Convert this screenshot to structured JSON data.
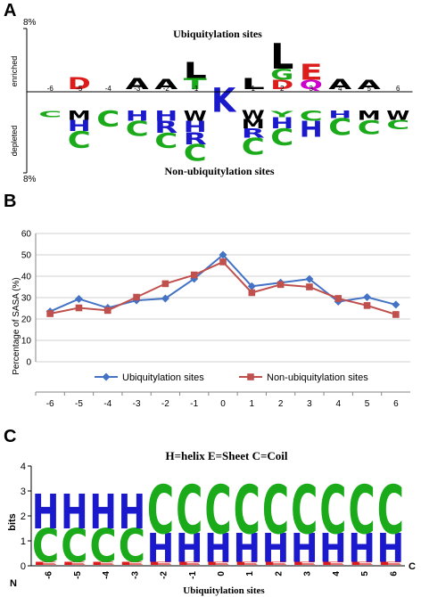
{
  "chart_data": [
    {
      "panel": "A",
      "type": "sequence-logo",
      "title_top": "Ubiquitylation sites",
      "title_bottom": "Non-ubiquitylation sites",
      "ylabel_top": "enriched",
      "ylabel_bottom": "depleted",
      "ytick_top": "8%",
      "ytick_bottom": "8%",
      "ymax_percent": 8,
      "positions": [
        "-6",
        "-5",
        "-4",
        "-3",
        "-2",
        "-1",
        "0",
        "1",
        "2",
        "3",
        "4",
        "5",
        "6"
      ],
      "colors": {
        "acidic": "#dd1c1c",
        "hydrophobic": "#000000",
        "polar": "#1aaa1a",
        "basic": "#1a1acc",
        "amide": "#cc00cc"
      },
      "enriched": [
        [],
        [
          {
            "letter": "D",
            "height": 1.3,
            "group": "acidic"
          }
        ],
        [],
        [
          {
            "letter": "A",
            "height": 1.2,
            "group": "hydrophobic"
          }
        ],
        [
          {
            "letter": "A",
            "height": 1.1,
            "group": "hydrophobic"
          }
        ],
        [
          {
            "letter": "T",
            "height": 1.2,
            "group": "polar"
          },
          {
            "letter": "L",
            "height": 1.7,
            "group": "hydrophobic"
          }
        ],
        [],
        [
          {
            "letter": "L",
            "height": 1.2,
            "group": "hydrophobic"
          }
        ],
        [
          {
            "letter": "D",
            "height": 1.0,
            "group": "acidic"
          },
          {
            "letter": "G",
            "height": 1.2,
            "group": "polar"
          },
          {
            "letter": "L",
            "height": 2.7,
            "group": "hydrophobic"
          }
        ],
        [
          {
            "letter": "Q",
            "height": 1.0,
            "group": "amide"
          },
          {
            "letter": "E",
            "height": 1.7,
            "group": "acidic"
          }
        ],
        [
          {
            "letter": "A",
            "height": 1.1,
            "group": "hydrophobic"
          }
        ],
        [
          {
            "letter": "A",
            "height": 1.0,
            "group": "hydrophobic"
          }
        ],
        []
      ],
      "depleted": [
        [
          {
            "letter": "C",
            "height": 0.7,
            "group": "polar"
          }
        ],
        [
          {
            "letter": "M",
            "height": 1.0,
            "group": "hydrophobic"
          },
          {
            "letter": "H",
            "height": 1.2,
            "group": "basic"
          },
          {
            "letter": "C",
            "height": 1.8,
            "group": "polar"
          }
        ],
        [
          {
            "letter": "C",
            "height": 1.7,
            "group": "polar"
          }
        ],
        [
          {
            "letter": "H",
            "height": 1.1,
            "group": "basic"
          },
          {
            "letter": "C",
            "height": 1.6,
            "group": "polar"
          }
        ],
        [
          {
            "letter": "H",
            "height": 1.1,
            "group": "basic"
          },
          {
            "letter": "R",
            "height": 1.3,
            "group": "basic"
          },
          {
            "letter": "C",
            "height": 1.6,
            "group": "polar"
          }
        ],
        [
          {
            "letter": "W",
            "height": 1.1,
            "group": "hydrophobic"
          },
          {
            "letter": "H",
            "height": 1.2,
            "group": "basic"
          },
          {
            "letter": "R",
            "height": 1.3,
            "group": "basic"
          },
          {
            "letter": "C",
            "height": 1.8,
            "group": "polar"
          }
        ],
        [],
        [
          {
            "letter": "W",
            "height": 0.9,
            "group": "hydrophobic"
          },
          {
            "letter": "M",
            "height": 1.0,
            "group": "hydrophobic"
          },
          {
            "letter": "R",
            "height": 1.0,
            "group": "basic"
          },
          {
            "letter": "C",
            "height": 1.8,
            "group": "polar"
          }
        ],
        [
          {
            "letter": "Y",
            "height": 0.7,
            "group": "polar"
          },
          {
            "letter": "H",
            "height": 1.2,
            "group": "basic"
          },
          {
            "letter": "C",
            "height": 1.8,
            "group": "polar"
          }
        ],
        [
          {
            "letter": "C",
            "height": 1.1,
            "group": "polar"
          },
          {
            "letter": "H",
            "height": 1.7,
            "group": "basic"
          }
        ],
        [
          {
            "letter": "H",
            "height": 0.8,
            "group": "basic"
          },
          {
            "letter": "C",
            "height": 1.8,
            "group": "polar"
          }
        ],
        [
          {
            "letter": "M",
            "height": 1.0,
            "group": "hydrophobic"
          },
          {
            "letter": "C",
            "height": 1.5,
            "group": "polar"
          }
        ],
        [
          {
            "letter": "W",
            "height": 1.0,
            "group": "hydrophobic"
          },
          {
            "letter": "C",
            "height": 1.0,
            "group": "polar"
          }
        ]
      ],
      "center": {
        "letter": "K",
        "height": 2.6,
        "group": "basic"
      }
    },
    {
      "panel": "B",
      "type": "line",
      "title": "",
      "xlabel": "",
      "ylabel": "Percentage of SASA (%)",
      "ylim": [
        0,
        60
      ],
      "yticks": [
        0,
        10,
        20,
        30,
        40,
        50,
        60
      ],
      "grid": true,
      "legend": "bottom",
      "x": [
        -6,
        -5,
        -4,
        -3,
        -2,
        -1,
        0,
        1,
        2,
        3,
        4,
        5,
        6
      ],
      "series": [
        {
          "name": "Ubiquitylation sites",
          "color": "#4472c4",
          "marker": "diamond",
          "values": [
            23.5,
            29.4,
            25.2,
            28.7,
            29.6,
            38.8,
            50.0,
            35.3,
            37.0,
            38.7,
            28.1,
            30.2,
            26.7
          ]
        },
        {
          "name": "Non-ubiquitylation sites",
          "color": "#c0504d",
          "marker": "square",
          "values": [
            22.5,
            25.2,
            24.0,
            30.2,
            36.5,
            40.6,
            46.7,
            32.3,
            36.1,
            35.0,
            29.6,
            26.3,
            22.1
          ]
        }
      ]
    },
    {
      "panel": "C",
      "type": "sequence-logo",
      "title": "H=helix E=Sheet C=Coil",
      "xlabel": "Ubiquitylation sites",
      "ylabel": "bits",
      "ylim": [
        0,
        4
      ],
      "yticks": [
        0,
        1,
        2,
        3,
        4
      ],
      "n_label": "N",
      "c_label": "C",
      "positions": [
        "-6",
        "-5",
        "-4",
        "-3",
        "-2",
        "-1",
        "0",
        "1",
        "2",
        "3",
        "4",
        "5",
        "6"
      ],
      "colors": {
        "H": "#1a1acc",
        "C": "#1aaa1a",
        "E": "#dd1c1c"
      },
      "stacks": [
        [
          {
            "letter": "E",
            "height": 0.12
          },
          {
            "letter": "C",
            "height": 1.35
          },
          {
            "letter": "H",
            "height": 1.4
          }
        ],
        [
          {
            "letter": "E",
            "height": 0.12
          },
          {
            "letter": "C",
            "height": 1.35
          },
          {
            "letter": "H",
            "height": 1.4
          }
        ],
        [
          {
            "letter": "E",
            "height": 0.12
          },
          {
            "letter": "C",
            "height": 1.35
          },
          {
            "letter": "H",
            "height": 1.4
          }
        ],
        [
          {
            "letter": "E",
            "height": 0.12
          },
          {
            "letter": "C",
            "height": 1.35
          },
          {
            "letter": "H",
            "height": 1.4
          }
        ],
        [
          {
            "letter": "E",
            "height": 0.12
          },
          {
            "letter": "H",
            "height": 1.15
          },
          {
            "letter": "C",
            "height": 1.95
          }
        ],
        [
          {
            "letter": "E",
            "height": 0.12
          },
          {
            "letter": "H",
            "height": 1.15
          },
          {
            "letter": "C",
            "height": 1.95
          }
        ],
        [
          {
            "letter": "E",
            "height": 0.12
          },
          {
            "letter": "H",
            "height": 1.15
          },
          {
            "letter": "C",
            "height": 1.95
          }
        ],
        [
          {
            "letter": "E",
            "height": 0.12
          },
          {
            "letter": "H",
            "height": 1.15
          },
          {
            "letter": "C",
            "height": 1.95
          }
        ],
        [
          {
            "letter": "E",
            "height": 0.12
          },
          {
            "letter": "H",
            "height": 1.15
          },
          {
            "letter": "C",
            "height": 1.95
          }
        ],
        [
          {
            "letter": "E",
            "height": 0.12
          },
          {
            "letter": "H",
            "height": 1.15
          },
          {
            "letter": "C",
            "height": 1.95
          }
        ],
        [
          {
            "letter": "E",
            "height": 0.12
          },
          {
            "letter": "H",
            "height": 1.15
          },
          {
            "letter": "C",
            "height": 1.95
          }
        ],
        [
          {
            "letter": "E",
            "height": 0.12
          },
          {
            "letter": "H",
            "height": 1.15
          },
          {
            "letter": "C",
            "height": 1.95
          }
        ],
        [
          {
            "letter": "E",
            "height": 0.12
          },
          {
            "letter": "H",
            "height": 1.15
          },
          {
            "letter": "C",
            "height": 1.95
          }
        ]
      ]
    }
  ]
}
